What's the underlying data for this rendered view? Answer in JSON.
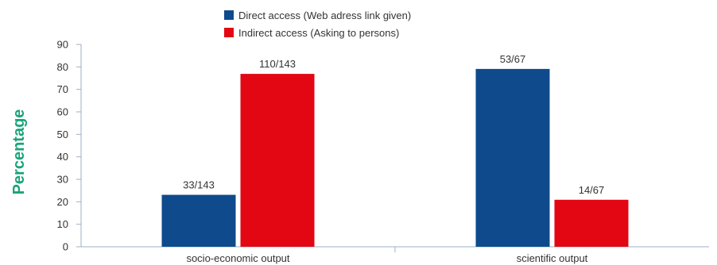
{
  "chart_data": {
    "type": "bar",
    "title": "",
    "xlabel": "",
    "ylabel": "Percentage",
    "ylim": [
      0,
      90
    ],
    "yticks": [
      0,
      10,
      20,
      30,
      40,
      50,
      60,
      70,
      80,
      90
    ],
    "categories": [
      "socio-economic output",
      "scientific output"
    ],
    "series": [
      {
        "name": "Direct access (Web adress link given)",
        "color": "#0e4a8c",
        "values": [
          23.1,
          79.1
        ],
        "labels": [
          "33/143",
          "53/67"
        ]
      },
      {
        "name": "Indirect access (Asking to persons)",
        "color": "#e30613",
        "values": [
          76.9,
          20.9
        ],
        "labels": [
          "110/143",
          "14/67"
        ]
      }
    ],
    "ylabel_color": "#1aa47a",
    "grid": false,
    "legend_position": "top-center"
  }
}
